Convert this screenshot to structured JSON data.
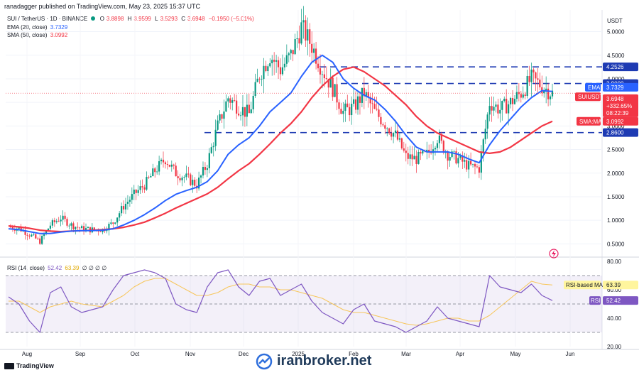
{
  "header": {
    "published": "ranadagger published on TradingView.com, May 23, 2025 15:37 UTC",
    "pair": "SUI / TetherUS · 1D · BINANCE",
    "ohlc": {
      "o_label": "O",
      "o": "3.8898",
      "h_label": "H",
      "h": "3.9599",
      "l_label": "L",
      "l": "3.5293",
      "c_label": "C",
      "c": "3.6948",
      "chg": "−0.1950 (−5.01%)"
    },
    "ema_label": "EMA (20, close)",
    "ema_value": "3.7329",
    "sma_label": "SMA (50, close)",
    "sma_value": "3.0992",
    "currency": "USDT"
  },
  "rsi_header": {
    "label": "RSI (14, close)",
    "rsi": "52.42",
    "ma": "63.39",
    "extra": "∅ ∅ ∅ ∅"
  },
  "footer": {
    "brand": "TradingView",
    "watermark": "iranbroker.net"
  },
  "colors": {
    "up": "#089981",
    "down": "#f23645",
    "ema": "#2962ff",
    "sma": "#f23645",
    "level": "#1e3bb3",
    "rsi": "#7e57c2",
    "rsi_ma": "#f7c65b"
  },
  "chart_data": [
    {
      "type": "candlestick",
      "title": "SUI / TetherUS · 1D · BINANCE",
      "ylabel": "USDT",
      "ylim": [
        0.4,
        5.4
      ],
      "y_ticks": [
        "5.0000",
        "4.5000",
        "4.0000",
        "3.5000",
        "3.0000",
        "2.5000",
        "2.0000",
        "1.5000",
        "1.0000",
        "0.5000"
      ],
      "x_ticks": [
        "Aug",
        "Sep",
        "Oct",
        "Nov",
        "Dec",
        "2025",
        "Feb",
        "Mar",
        "Apr",
        "May",
        "Jun"
      ],
      "horizontal_levels": [
        {
          "value": 4.2526,
          "label": "4.2526"
        },
        {
          "value": 3.9,
          "label": "3.9000"
        },
        {
          "value": 2.86,
          "label": "2.8600"
        }
      ],
      "price_tags": [
        {
          "label": "EMA",
          "value": "3.7329"
        },
        {
          "label": "SUIUSDT",
          "value": "3.6948",
          "extra": [
            "+332.65%",
            "08:22:39"
          ]
        },
        {
          "label": "SMA:MA",
          "value": "3.0992"
        }
      ],
      "series": [
        {
          "name": "SUIUSDT",
          "close": [
            0.86,
            0.83,
            0.7,
            0.55,
            0.9,
            1.05,
            0.9,
            0.82,
            0.8,
            0.8,
            0.95,
            1.3,
            1.55,
            1.75,
            2.05,
            2.3,
            2.0,
            1.9,
            1.75,
            2.2,
            3.0,
            3.6,
            3.4,
            3.25,
            4.1,
            4.5,
            4.2,
            4.5,
            5.1,
            4.7,
            4.2,
            3.8,
            3.3,
            3.4,
            3.7,
            3.3,
            3.05,
            2.8,
            2.35,
            2.3,
            2.4,
            2.75,
            2.4,
            2.3,
            2.15,
            2.1,
            3.5,
            3.35,
            3.5,
            3.7,
            4.0,
            3.85,
            3.69
          ],
          "x_start": "Jul 15, 2024",
          "x_step_days": 7
        },
        {
          "name": "EMA (20, close)",
          "values": [
            0.82,
            0.8,
            0.76,
            0.72,
            0.72,
            0.75,
            0.77,
            0.78,
            0.78,
            0.79,
            0.82,
            0.9,
            1.0,
            1.12,
            1.26,
            1.42,
            1.55,
            1.63,
            1.7,
            1.82,
            2.05,
            2.4,
            2.6,
            2.75,
            3.0,
            3.3,
            3.5,
            3.7,
            4.05,
            4.35,
            4.5,
            4.35,
            4.0,
            3.8,
            3.65,
            3.55,
            3.35,
            3.1,
            2.8,
            2.55,
            2.45,
            2.45,
            2.45,
            2.4,
            2.3,
            2.22,
            2.6,
            2.9,
            3.15,
            3.4,
            3.6,
            3.75,
            3.7329
          ]
        },
        {
          "name": "SMA (50, close)",
          "values": [
            0.88,
            0.86,
            0.83,
            0.79,
            0.77,
            0.76,
            0.77,
            0.78,
            0.79,
            0.8,
            0.82,
            0.85,
            0.9,
            0.96,
            1.05,
            1.15,
            1.26,
            1.36,
            1.46,
            1.56,
            1.7,
            1.88,
            2.05,
            2.2,
            2.4,
            2.62,
            2.85,
            3.05,
            3.3,
            3.6,
            3.85,
            4.05,
            4.2,
            4.25,
            4.15,
            4.0,
            3.85,
            3.65,
            3.45,
            3.2,
            3.0,
            2.85,
            2.75,
            2.65,
            2.55,
            2.45,
            2.42,
            2.45,
            2.55,
            2.7,
            2.85,
            3.0,
            3.0992
          ]
        }
      ]
    },
    {
      "type": "line",
      "title": "RSI (14, close)",
      "ylim": [
        20,
        80
      ],
      "y_ticks": [
        "80.00",
        "60.00",
        "40.00",
        "20.00"
      ],
      "bands": [
        70,
        50,
        30
      ],
      "series": [
        {
          "name": "RSI",
          "values": [
            55,
            50,
            38,
            30,
            58,
            62,
            48,
            44,
            46,
            48,
            60,
            70,
            72,
            74,
            72,
            68,
            50,
            46,
            44,
            62,
            72,
            74,
            62,
            56,
            66,
            68,
            56,
            60,
            64,
            52,
            44,
            40,
            36,
            46,
            50,
            38,
            36,
            34,
            30,
            34,
            38,
            48,
            40,
            38,
            36,
            34,
            70,
            62,
            60,
            58,
            64,
            56,
            52.42
          ]
        },
        {
          "name": "RSI-based MA",
          "values": [
            52,
            52,
            48,
            44,
            48,
            50,
            52,
            50,
            49,
            48,
            52,
            56,
            62,
            66,
            68,
            68,
            64,
            60,
            56,
            56,
            58,
            62,
            64,
            64,
            62,
            62,
            60,
            60,
            58,
            56,
            54,
            50,
            46,
            44,
            44,
            42,
            40,
            38,
            36,
            35,
            36,
            38,
            40,
            40,
            38,
            38,
            42,
            48,
            54,
            60,
            66,
            64,
            63.39
          ]
        }
      ],
      "tags": [
        {
          "label": "RSI-based MA",
          "value": "63.39"
        },
        {
          "label": "RSI",
          "value": "52.42"
        }
      ]
    }
  ]
}
